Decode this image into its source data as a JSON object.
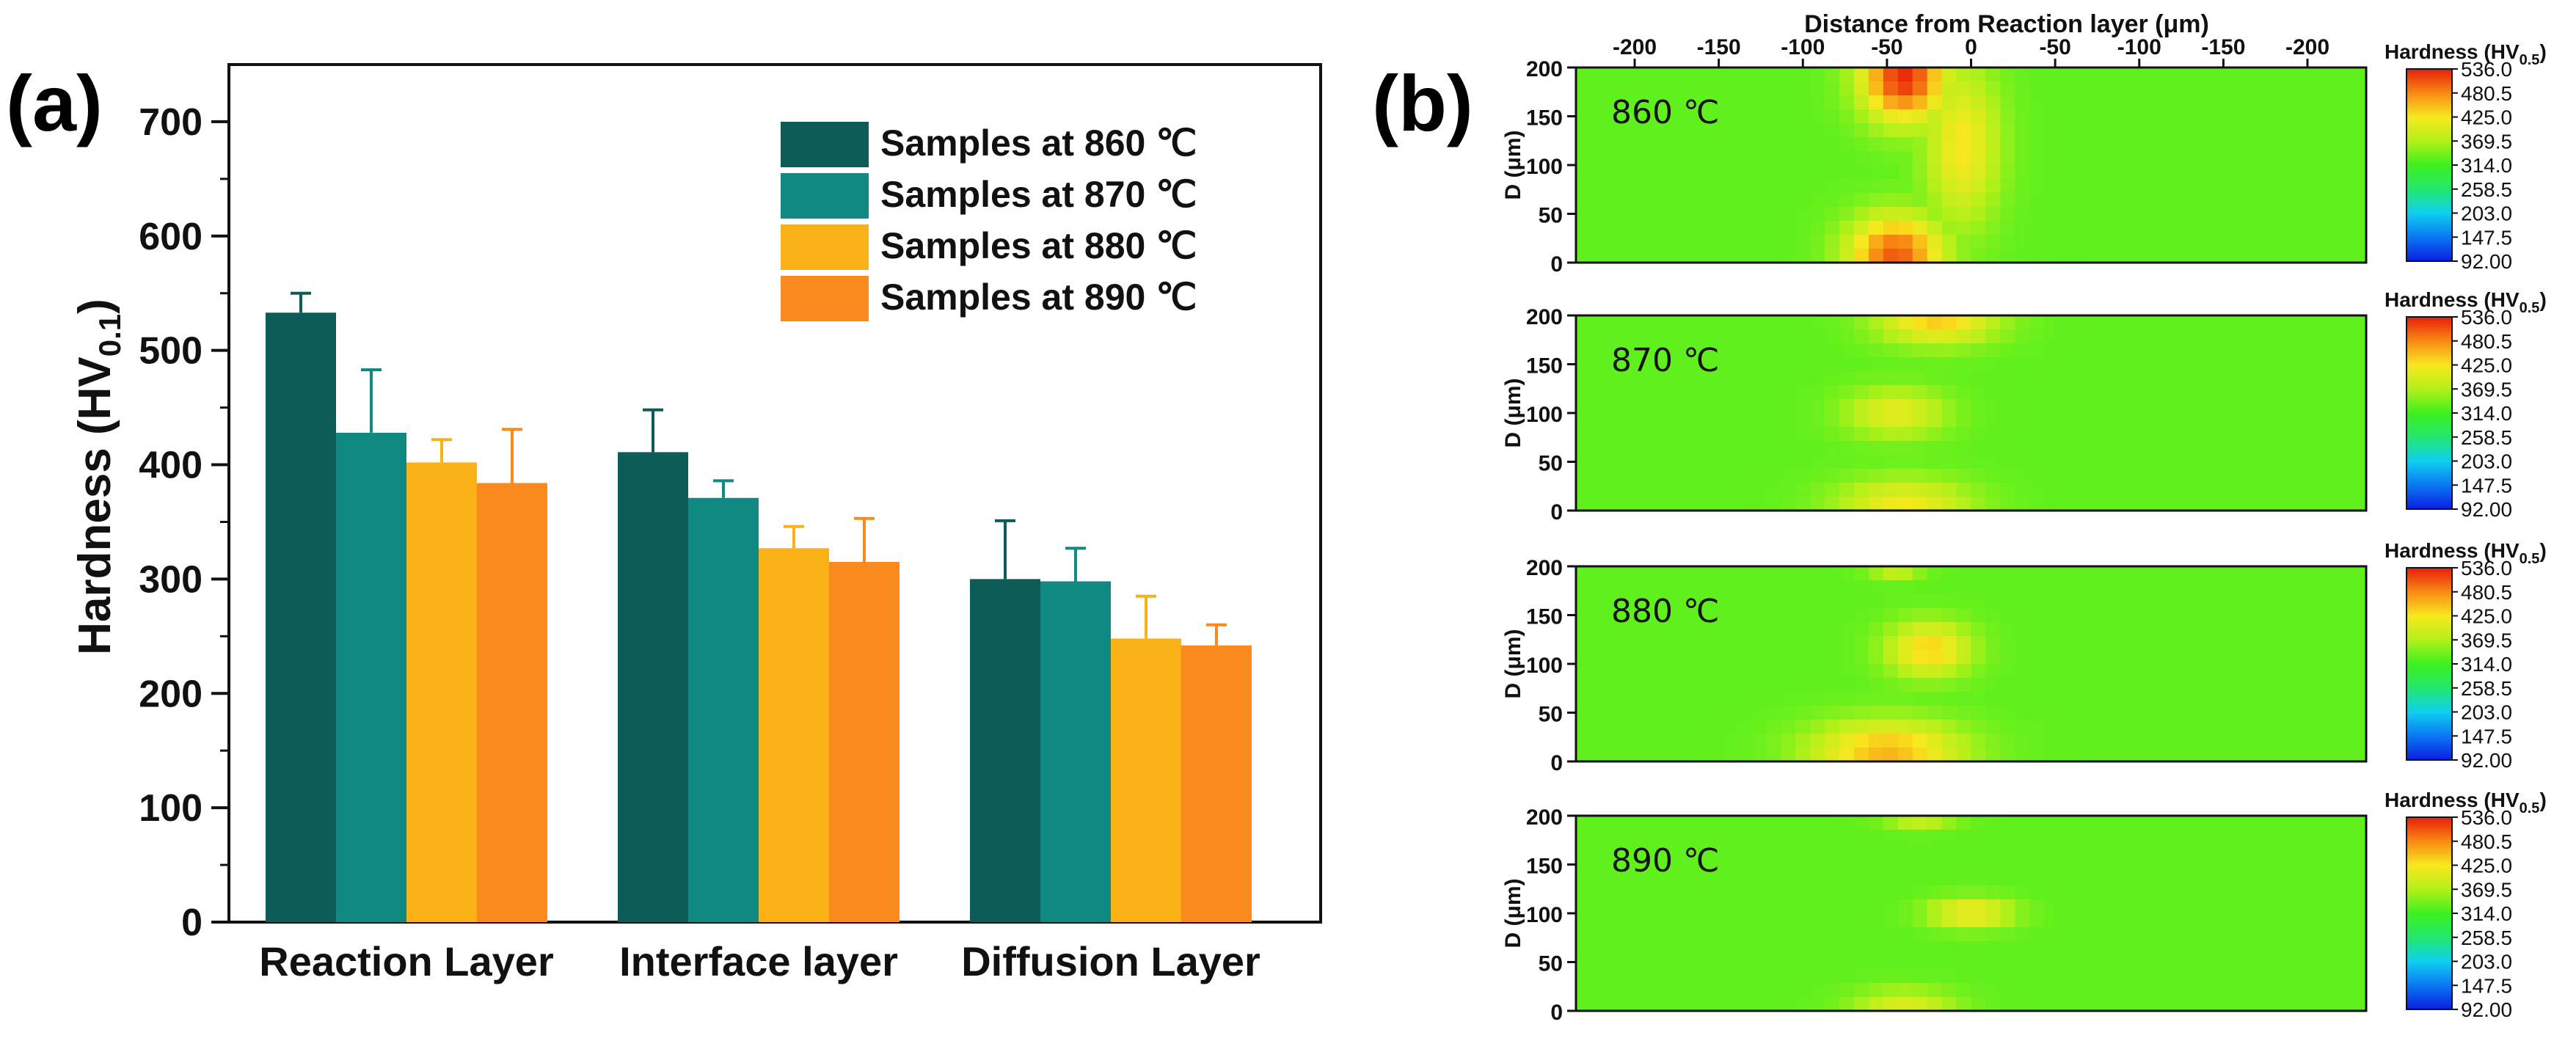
{
  "chart_data": [
    {
      "type": "bar",
      "panel_label": "(a)",
      "ylabel_main": "Hardness (HV",
      "ylabel_sub": "0.1",
      "ylabel_close": ")",
      "ylim": [
        0,
        750
      ],
      "yticks": [
        0,
        100,
        200,
        300,
        400,
        500,
        600,
        700
      ],
      "ytick_labels": [
        "0",
        "100",
        "200",
        "300",
        "400",
        "500",
        "600",
        "700"
      ],
      "categories": [
        "Reaction Layer",
        "Interface layer",
        "Diffusion Layer"
      ],
      "legend_position": "top-right",
      "series": [
        {
          "name": "Samples at 860 ℃",
          "color": "#0d5c58",
          "values": [
            533,
            411,
            300
          ],
          "errors": [
            17,
            37,
            51
          ]
        },
        {
          "name": "Samples at 870 ℃",
          "color": "#118983",
          "values": [
            428,
            371,
            298
          ],
          "errors": [
            55,
            15,
            29
          ]
        },
        {
          "name": "Samples at 880 ℃",
          "color": "#fbb216",
          "values": [
            402,
            327,
            248
          ],
          "errors": [
            20,
            19,
            37
          ]
        },
        {
          "name": "Samples at 890 ℃",
          "color": "#fa8a1e",
          "values": [
            384,
            315,
            242
          ],
          "errors": [
            47,
            38,
            18
          ]
        }
      ]
    },
    {
      "type": "heatmap",
      "panel_label": "(b)",
      "x_title": "Distance from Reaction layer (μm)",
      "x_ticks": [
        -200,
        -150,
        -100,
        -50,
        0,
        -50,
        -100,
        -150,
        -200
      ],
      "x_tick_labels": [
        "-200",
        "-150",
        "-100",
        "-50",
        "0",
        "-50",
        "-100",
        "-150",
        "-200"
      ],
      "y_title": "D (μm)",
      "y_ticks": [
        0,
        50,
        100,
        150,
        200
      ],
      "y_tick_labels": [
        "0",
        "50",
        "100",
        "150",
        "200"
      ],
      "colorbar_title_main": "Hardness (HV",
      "colorbar_title_sub": "0.5",
      "colorbar_title_close": ")",
      "colorbar_range": [
        92.0,
        536.0
      ],
      "colorbar_labels": [
        "536.0",
        "480.5",
        "425.0",
        "369.5",
        "314.0",
        "258.5",
        "203.0",
        "147.5",
        "92.00"
      ],
      "colors": [
        "#0b1ee0",
        "#0a78f2",
        "#0fd0f0",
        "#22e86e",
        "#3ef01e",
        "#b4f01a",
        "#f8e81e",
        "#f88a14",
        "#e81e0a"
      ],
      "panels": [
        {
          "temperature": "860 ℃",
          "hotspots": [
            {
              "x": -40,
              "y": 190,
              "value": 530,
              "sx": 25,
              "sy": 45
            },
            {
              "x": -45,
              "y": 8,
              "value": 505,
              "sx": 28,
              "sy": 40
            },
            {
              "x": -5,
              "y": 120,
              "value": 425,
              "sx": 22,
              "sy": 80
            }
          ],
          "min_edge": 110
        },
        {
          "temperature": "870 ℃",
          "hotspots": [
            {
              "x": -20,
              "y": 195,
              "value": 440,
              "sx": 35,
              "sy": 25
            },
            {
              "x": -45,
              "y": 100,
              "value": 410,
              "sx": 30,
              "sy": 25
            },
            {
              "x": -40,
              "y": 5,
              "value": 420,
              "sx": 40,
              "sy": 28
            }
          ],
          "min_edge": 200
        },
        {
          "temperature": "880 ℃",
          "hotspots": [
            {
              "x": -45,
              "y": 200,
              "value": 400,
              "sx": 15,
              "sy": 12
            },
            {
              "x": -25,
              "y": 115,
              "value": 440,
              "sx": 25,
              "sy": 28
            },
            {
              "x": -50,
              "y": 10,
              "value": 455,
              "sx": 45,
              "sy": 32
            }
          ],
          "min_edge": 190
        },
        {
          "temperature": "890 ℃",
          "hotspots": [
            {
              "x": -30,
              "y": 200,
              "value": 400,
              "sx": 20,
              "sy": 12
            },
            {
              "x": 0,
              "y": 100,
              "value": 430,
              "sx": 25,
              "sy": 15
            },
            {
              "x": -40,
              "y": 5,
              "value": 400,
              "sx": 30,
              "sy": 18
            }
          ],
          "min_edge": 190
        }
      ]
    }
  ]
}
